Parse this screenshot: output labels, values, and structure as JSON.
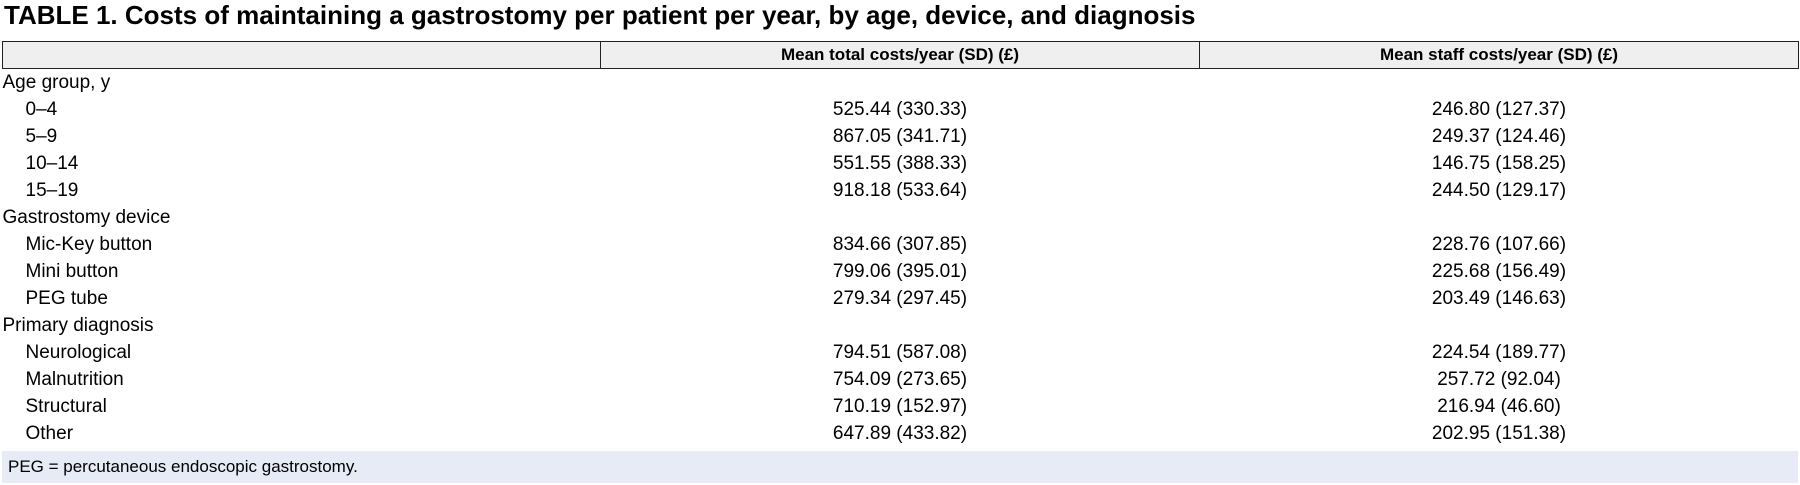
{
  "title": "TABLE 1. Costs of maintaining a gastrostomy per patient per year, by age, device, and diagnosis",
  "table": {
    "columns": [
      "Mean total costs/year (SD) (£)",
      "Mean staff costs/year (SD) (£)"
    ],
    "groups": [
      {
        "label": "Age group, y",
        "rows": [
          [
            "0–4",
            "525.44 (330.33)",
            "246.80 (127.37)"
          ],
          [
            "5–9",
            "867.05 (341.71)",
            "249.37 (124.46)"
          ],
          [
            "10–14",
            "551.55 (388.33)",
            "146.75 (158.25)"
          ],
          [
            "15–19",
            "918.18 (533.64)",
            "244.50 (129.17)"
          ]
        ]
      },
      {
        "label": "Gastrostomy device",
        "rows": [
          [
            "Mic-Key button",
            "834.66 (307.85)",
            "228.76 (107.66)"
          ],
          [
            "Mini button",
            "799.06 (395.01)",
            "225.68 (156.49)"
          ],
          [
            "PEG tube",
            "279.34 (297.45)",
            "203.49 (146.63)"
          ]
        ]
      },
      {
        "label": "Primary diagnosis",
        "rows": [
          [
            "Neurological",
            "794.51 (587.08)",
            "224.54 (189.77)"
          ],
          [
            "Malnutrition",
            "754.09 (273.65)",
            "257.72 (92.04)"
          ],
          [
            "Structural",
            "710.19 (152.97)",
            "216.94 (46.60)"
          ],
          [
            "Other",
            "647.89 (433.82)",
            "202.95 (151.38)"
          ]
        ]
      }
    ]
  },
  "footnote": "PEG = percutaneous endoscopic gastrostomy."
}
